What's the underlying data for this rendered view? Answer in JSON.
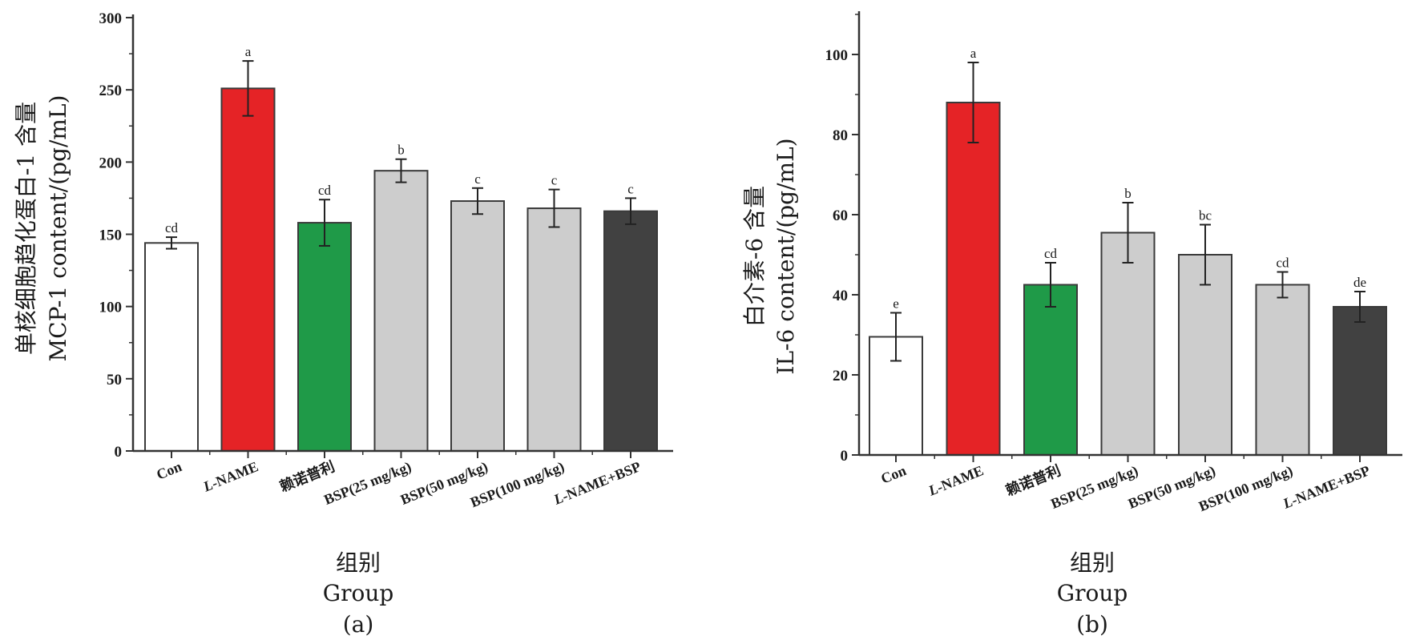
{
  "figure": {
    "panel_a_label": "(a)",
    "panel_b_label": "(b)"
  },
  "colors": {
    "con": "#ffffff",
    "l_name": "#e52326",
    "drug": "#1f9a48",
    "bsp": "#cdcdcd",
    "combo": "#414141",
    "axis": "#333333"
  },
  "chart_data": [
    {
      "type": "bar",
      "panel": "(a)",
      "xlabel_cn": "组别",
      "xlabel_en": "Group",
      "ylabel_cn": "单核细胞趋化蛋白-1 含量",
      "ylabel_en": "MCP-1  content/(pg/mL)",
      "ylim": [
        0,
        300
      ],
      "yticks": [
        0,
        50,
        100,
        150,
        200,
        250,
        300
      ],
      "categories": [
        "Con",
        "L-NAME",
        "赖诺普利",
        "BSP(25 mg/kg)",
        "BSP(50 mg/kg)",
        "BSP(100 mg/kg)",
        "L-NAME+BSP"
      ],
      "values": [
        144,
        251,
        158,
        194,
        173,
        168,
        166
      ],
      "errors": [
        4,
        19,
        16,
        8,
        9,
        13,
        9
      ],
      "significance": [
        "cd",
        "a",
        "cd",
        "b",
        "c",
        "c",
        "c"
      ],
      "bar_color_keys": [
        "con",
        "l_name",
        "drug",
        "bsp",
        "bsp",
        "bsp",
        "combo"
      ]
    },
    {
      "type": "bar",
      "panel": "(b)",
      "xlabel_cn": "组别",
      "xlabel_en": "Group",
      "ylabel_cn": "白介素-6 含量",
      "ylabel_en": "IL-6  content/(pg/mL)",
      "ylim": [
        0,
        110
      ],
      "yticks": [
        0,
        20,
        40,
        60,
        80,
        100
      ],
      "categories": [
        "Con",
        "L-NAME",
        "赖诺普利",
        "BSP(25 mg/kg)",
        "BSP(50 mg/kg)",
        "BSP(100 mg/kg)",
        "L-NAME+BSP"
      ],
      "values": [
        29.5,
        88,
        42.5,
        55.5,
        50,
        42.5,
        37
      ],
      "errors": [
        6,
        10,
        5.5,
        7.5,
        7.5,
        3.2,
        3.8
      ],
      "significance": [
        "e",
        "a",
        "cd",
        "b",
        "bc",
        "cd",
        "de"
      ],
      "bar_color_keys": [
        "con",
        "l_name",
        "drug",
        "bsp",
        "bsp",
        "bsp",
        "combo"
      ]
    }
  ]
}
